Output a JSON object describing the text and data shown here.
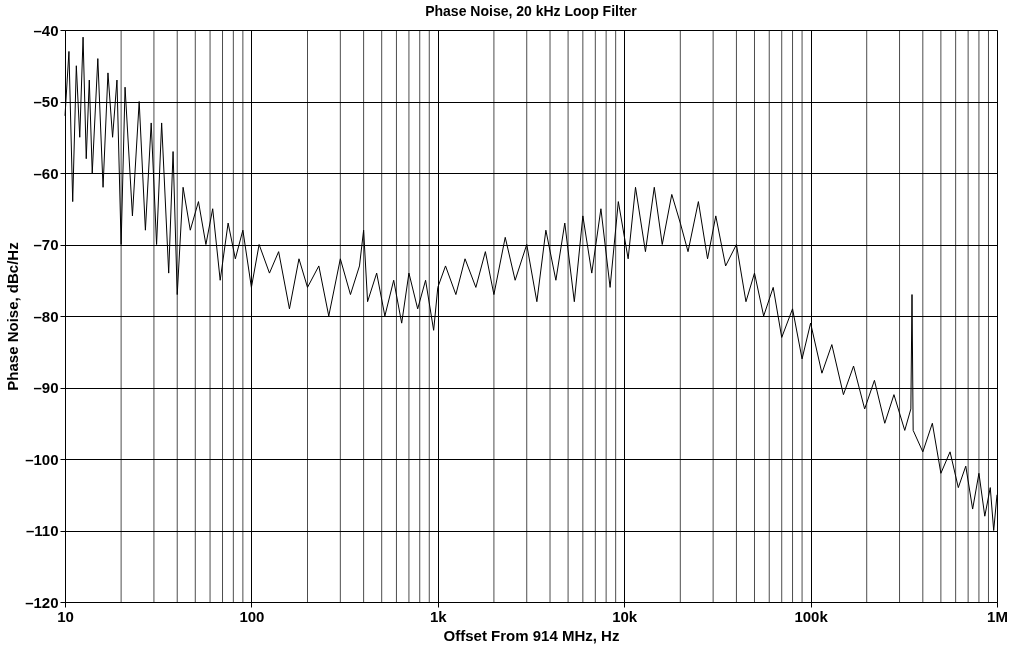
{
  "chart_data": {
    "type": "line",
    "title": "Phase Noise, 20 kHz Loop Filter",
    "xlabel": "Offset From 914 MHz, Hz",
    "ylabel": "Phase Noise, dBc/Hz",
    "log": "x",
    "grid": true,
    "marker": "none",
    "line_style": "solid",
    "xlim": [
      10,
      1000000
    ],
    "ylim": [
      -120,
      -40
    ],
    "xticks": [
      10,
      100,
      {
        "value": 1000,
        "label": "1k"
      },
      {
        "value": 10000,
        "label": "10k"
      },
      {
        "value": 100000,
        "label": "100k"
      },
      {
        "value": 1000000,
        "label": "1M"
      }
    ],
    "yticks": [
      {
        "value": -120,
        "label": "–120"
      },
      {
        "value": -110,
        "label": "–110"
      },
      {
        "value": -100,
        "label": "–100"
      },
      {
        "value": -90,
        "label": "–90"
      },
      {
        "value": -80,
        "label": "–80"
      },
      {
        "value": -70,
        "label": "–70"
      },
      {
        "value": -60,
        "label": "–60"
      },
      {
        "value": -50,
        "label": "–50"
      },
      {
        "value": -40,
        "label": "–40"
      }
    ],
    "series": [
      {
        "color": "#000000",
        "x": [
          10,
          10.5,
          11,
          11.5,
          12,
          12.5,
          13,
          13.5,
          14,
          15,
          16,
          17,
          18,
          19,
          20,
          21,
          23,
          25,
          27,
          29,
          31,
          33,
          36,
          38,
          40,
          43,
          47,
          52,
          57,
          62,
          68,
          75,
          82,
          90,
          100,
          110,
          125,
          140,
          160,
          180,
          200,
          230,
          260,
          300,
          340,
          380,
          400,
          420,
          470,
          520,
          580,
          640,
          700,
          780,
          860,
          950,
          1000,
          1100,
          1250,
          1400,
          1600,
          1800,
          2000,
          2300,
          2600,
          3000,
          3400,
          3800,
          4300,
          4800,
          5400,
          6000,
          6700,
          7500,
          8400,
          9300,
          10500,
          11500,
          13000,
          14500,
          16000,
          18000,
          20000,
          22000,
          25000,
          28000,
          31000,
          35000,
          40000,
          45000,
          50000,
          56000,
          63000,
          70000,
          80000,
          90000,
          100000,
          115000,
          130000,
          150000,
          170000,
          195000,
          220000,
          250000,
          280000,
          320000,
          345000,
          350000,
          355000,
          400000,
          450000,
          500000,
          560000,
          620000,
          680000,
          740000,
          800000,
          860000,
          920000,
          960000,
          1000000
        ],
        "values": [
          -52,
          -43,
          -64,
          -45,
          -55,
          -41,
          -58,
          -47,
          -60,
          -44,
          -62,
          -46,
          -55,
          -47,
          -70,
          -48,
          -66,
          -50,
          -68,
          -53,
          -70,
          -53,
          -74,
          -57,
          -77,
          -62,
          -68,
          -64,
          -70,
          -65,
          -75,
          -67,
          -72,
          -68,
          -76,
          -70,
          -74,
          -71,
          -79,
          -72,
          -76,
          -73,
          -80,
          -72,
          -77,
          -73,
          -68,
          -78,
          -74,
          -80,
          -75,
          -81,
          -74,
          -79,
          -75,
          -82,
          -76,
          -73,
          -77,
          -72,
          -76,
          -71,
          -77,
          -69,
          -75,
          -70,
          -78,
          -68,
          -75,
          -67,
          -78,
          -66,
          -74,
          -65,
          -76,
          -64,
          -72,
          -62,
          -71,
          -62,
          -70,
          -63,
          -67,
          -71,
          -64,
          -72,
          -66,
          -73,
          -70,
          -78,
          -74,
          -80,
          -76,
          -83,
          -79,
          -86,
          -81,
          -88,
          -84,
          -91,
          -87,
          -93,
          -89,
          -95,
          -91,
          -96,
          -93,
          -77,
          -96,
          -99,
          -95,
          -102,
          -99,
          -104,
          -101,
          -107,
          -102,
          -108,
          -104,
          -110,
          -105
        ]
      }
    ]
  }
}
